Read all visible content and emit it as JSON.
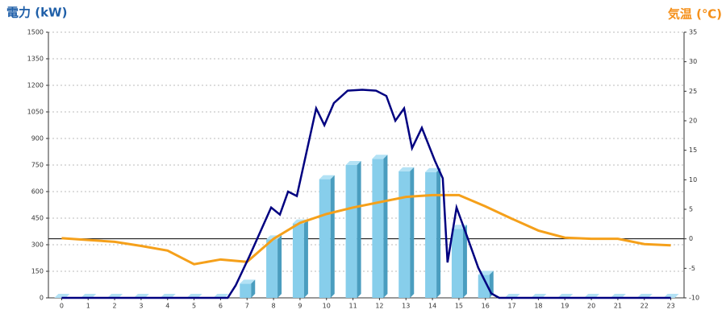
{
  "chart_data": {
    "type": "bar-line",
    "y_title": "電力 (kW)",
    "y2_title": "気温 (℃)",
    "categories": [
      "0",
      "1",
      "2",
      "3",
      "4",
      "5",
      "6",
      "7",
      "8",
      "9",
      "10",
      "11",
      "12",
      "13",
      "14",
      "15",
      "16",
      "17",
      "18",
      "19",
      "20",
      "21",
      "22",
      "23"
    ],
    "xlim": [
      -0.5,
      23.5
    ],
    "ylim": [
      0,
      1500
    ],
    "yticks": [
      0,
      150,
      300,
      450,
      600,
      750,
      900,
      1050,
      1200,
      1350,
      1500
    ],
    "y2lim": [
      -10,
      35
    ],
    "y2ticks": [
      -10,
      -5,
      0,
      5,
      10,
      15,
      20,
      25,
      30,
      35
    ],
    "grid": true,
    "series": [
      {
        "type": "bar",
        "color": "#87ceeb",
        "values": [
          0,
          0,
          0,
          0,
          0,
          0,
          0,
          80,
          330,
          420,
          670,
          750,
          785,
          715,
          710,
          390,
          130,
          0,
          0,
          0,
          0,
          0,
          0,
          0
        ]
      },
      {
        "type": "line",
        "axis": "y2",
        "color": "#f5a01a",
        "values": [
          0.1,
          -0.2,
          -0.5,
          -1.2,
          -2,
          -4.3,
          -3.5,
          -3.9,
          0,
          2.7,
          4.2,
          5.3,
          6.2,
          7.1,
          7.4,
          7.4,
          5.5,
          3.4,
          1.4,
          0.2,
          0,
          0,
          -0.9,
          -1.1
        ]
      }
    ],
    "detail_line": {
      "color": "#000080",
      "x": [
        0,
        6.27,
        6.57,
        7.09,
        7.91,
        8.24,
        8.55,
        8.88,
        9.61,
        9.92,
        10.28,
        10.8,
        11.35,
        11.87,
        12.26,
        12.6,
        12.93,
        13.23,
        13.6,
        14.09,
        14.39,
        14.57,
        14.91,
        15.24,
        15.73,
        16.22,
        16.52,
        23
      ],
      "values": [
        0,
        0,
        70,
        235,
        510,
        470,
        600,
        575,
        1070,
        975,
        1100,
        1170,
        1175,
        1170,
        1140,
        1000,
        1070,
        845,
        960,
        775,
        675,
        200,
        510,
        375,
        170,
        25,
        0,
        0
      ]
    }
  }
}
